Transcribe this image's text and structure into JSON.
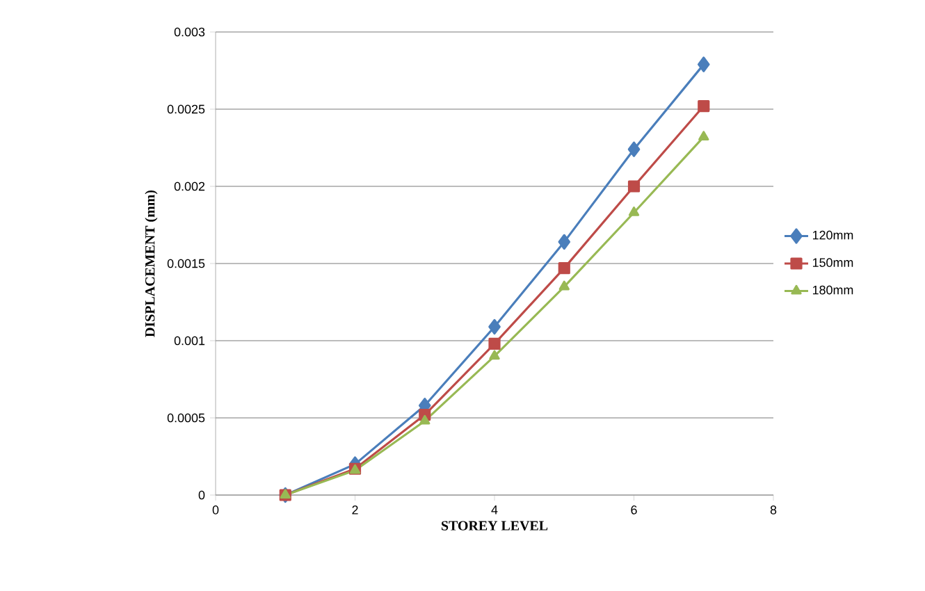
{
  "chart_data": {
    "type": "line",
    "xlabel": "STOREY LEVEL",
    "ylabel": "DISPLACEMENT (mm)",
    "x": [
      1,
      2,
      3,
      4,
      5,
      6,
      7
    ],
    "series": [
      {
        "name": "120mm",
        "color": "#4a7ebb",
        "marker": "diamond",
        "values": [
          0,
          0.0002,
          0.00058,
          0.00109,
          0.00164,
          0.00224,
          0.00279
        ]
      },
      {
        "name": "150mm",
        "color": "#be4b48",
        "marker": "square",
        "values": [
          0,
          0.00017,
          0.00052,
          0.00098,
          0.00147,
          0.002,
          0.00252
        ]
      },
      {
        "name": "180mm",
        "color": "#98b954",
        "marker": "triangle",
        "values": [
          0,
          0.00016,
          0.00048,
          0.0009,
          0.00135,
          0.00183,
          0.00232
        ]
      }
    ],
    "xlim": [
      0,
      8
    ],
    "xticks": [
      0,
      2,
      4,
      6,
      8
    ],
    "ylim": [
      0,
      0.003
    ],
    "yticks": [
      0,
      0.0005,
      0.001,
      0.0015,
      0.002,
      0.0025,
      0.003
    ],
    "grid": "y",
    "legend": "right",
    "line_style": "solid"
  }
}
